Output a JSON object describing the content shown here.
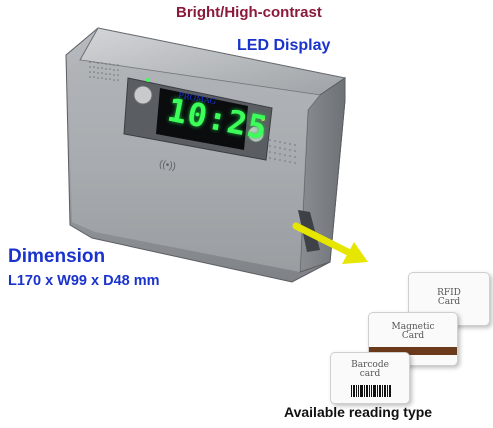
{
  "headline": "Bright/High-contrast",
  "subheadline": "LED Display",
  "device": {
    "brand": "PROMAG",
    "time": "10:25",
    "rfid_symbol": "((•))"
  },
  "dimension": {
    "title": "Dimension",
    "size": "L170 x W99 x D48 mm"
  },
  "cards": {
    "rfid": [
      "RFID",
      "Card"
    ],
    "magnetic": [
      "Magnetic",
      "Card"
    ],
    "barcode": [
      "Barcode",
      "card"
    ]
  },
  "reading_label": "Available reading type",
  "colors": {
    "headline": "#8b1a3a",
    "accent_blue": "#1a33cc",
    "led_green": "#3cff5a",
    "arrow_yellow": "#e6e600",
    "magstripe": "#6b3a1a"
  }
}
